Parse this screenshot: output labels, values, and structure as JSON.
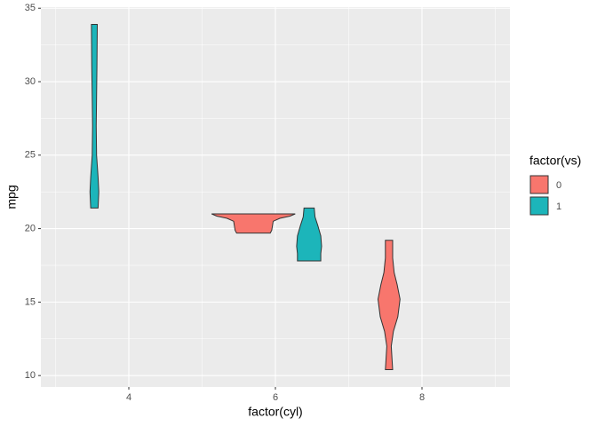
{
  "chart_data": {
    "type": "violin",
    "x_label": "factor(cyl)",
    "y_label": "mpg",
    "legend_title": "factor(vs)",
    "xlim": [
      2.8,
      9.2
    ],
    "ylim": [
      9.225,
      35.075
    ],
    "xticks": [
      4,
      6,
      8
    ],
    "yticks": [
      10,
      15,
      20,
      25,
      30,
      35
    ],
    "x_minor_ticks": [
      3,
      5,
      7,
      9
    ],
    "y_minor_ticks": [
      12.5,
      17.5,
      22.5,
      27.5,
      32.5
    ],
    "grid": true,
    "legend_position": "right",
    "series": [
      {
        "name": "0",
        "color": "#F8766D",
        "violins": [
          {
            "x": 5.7,
            "ymin": 19.7,
            "ymax": 21.0,
            "profile": [
              [
                19.7,
                0.23
              ],
              [
                19.9,
                0.25
              ],
              [
                20.2,
                0.26
              ],
              [
                20.5,
                0.27
              ],
              [
                20.7,
                0.36
              ],
              [
                20.85,
                0.5
              ],
              [
                21.0,
                0.57
              ]
            ]
          },
          {
            "x": 7.55,
            "ymin": 10.4,
            "ymax": 19.2,
            "profile": [
              [
                10.4,
                0.05
              ],
              [
                11.2,
                0.04
              ],
              [
                12.0,
                0.03
              ],
              [
                13.0,
                0.06
              ],
              [
                14.0,
                0.12
              ],
              [
                15.2,
                0.15
              ],
              [
                16.2,
                0.11
              ],
              [
                17.0,
                0.07
              ],
              [
                18.0,
                0.05
              ],
              [
                19.2,
                0.05
              ]
            ]
          }
        ]
      },
      {
        "name": "1",
        "color": "#1CB5BA",
        "violins": [
          {
            "x": 3.53,
            "ymin": 21.4,
            "ymax": 33.9,
            "profile": [
              [
                21.4,
                0.05
              ],
              [
                22.5,
                0.06
              ],
              [
                23.5,
                0.05
              ],
              [
                25.0,
                0.03
              ],
              [
                27.0,
                0.025
              ],
              [
                29.0,
                0.03
              ],
              [
                31.0,
                0.035
              ],
              [
                33.9,
                0.04
              ]
            ]
          },
          {
            "x": 6.46,
            "ymin": 17.8,
            "ymax": 21.4,
            "profile": [
              [
                17.8,
                0.16
              ],
              [
                18.3,
                0.16
              ],
              [
                18.8,
                0.17
              ],
              [
                19.5,
                0.16
              ],
              [
                20.2,
                0.12
              ],
              [
                20.8,
                0.08
              ],
              [
                21.4,
                0.07
              ]
            ]
          }
        ]
      }
    ]
  }
}
